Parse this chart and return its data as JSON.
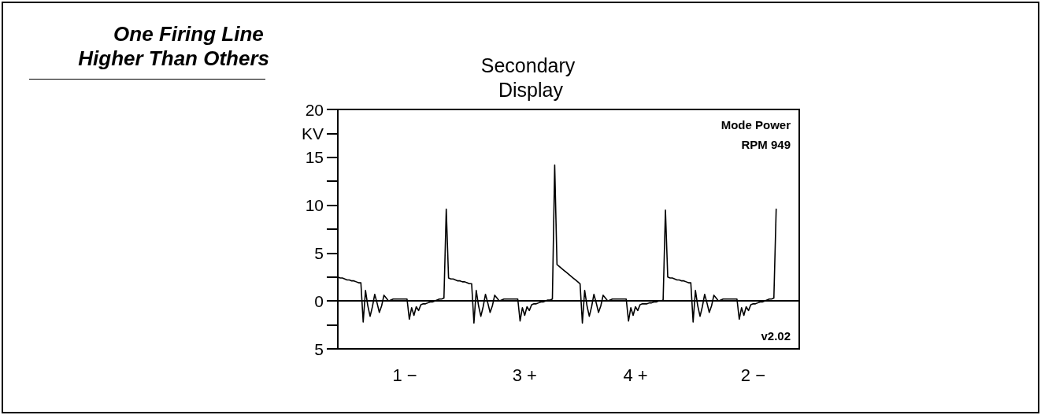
{
  "chart_data": {
    "type": "line",
    "title": "One Firing Line Higher Than Others",
    "subtitle": "Secondary Display",
    "annotations": [
      "Mode Power",
      "RPM 949",
      "v2.02"
    ],
    "categories": [
      null,
      null,
      null,
      null,
      null,
      null,
      null,
      null,
      null,
      null,
      null,
      null,
      null,
      null,
      null,
      null,
      null,
      null,
      null,
      null,
      null,
      null,
      null,
      null,
      null,
      null,
      null,
      null,
      null,
      "1 −",
      null,
      null,
      null,
      null,
      null,
      null,
      null,
      null,
      null,
      null,
      null,
      null,
      null,
      null,
      null,
      null,
      null,
      null,
      null,
      null,
      null,
      null,
      null,
      null,
      null,
      null,
      null,
      null,
      null,
      null,
      null,
      null,
      null,
      null,
      null,
      null,
      null,
      null,
      null,
      null,
      null,
      null,
      null,
      null,
      null,
      null,
      null,
      null,
      null,
      null,
      null,
      "3 +",
      null,
      null,
      null,
      null,
      null,
      null,
      null,
      null,
      null,
      null,
      null,
      null,
      null,
      null,
      null,
      null,
      null,
      null,
      null,
      null,
      null,
      null,
      null,
      null,
      null,
      null,
      null,
      null,
      null,
      null,
      null,
      null,
      null,
      null,
      null,
      null,
      null,
      null,
      null,
      null,
      null,
      null,
      null,
      null,
      null,
      null,
      null,
      "4 +",
      null,
      null,
      null,
      null,
      null,
      null,
      null,
      null,
      null,
      null,
      null,
      null,
      null,
      null,
      null,
      null,
      null,
      null,
      null,
      null,
      null,
      null,
      null,
      null,
      null,
      null,
      null,
      null,
      null,
      null,
      null,
      null,
      null,
      null,
      null,
      null,
      null,
      null,
      null,
      null,
      null,
      null,
      null,
      null,
      null,
      null,
      null,
      null,
      null,
      null,
      "2 −",
      null,
      null,
      null,
      null,
      null,
      null,
      null,
      null,
      null,
      null,
      null,
      null,
      null,
      null,
      null,
      null,
      null,
      null,
      null,
      null
    ],
    "ylim": [
      -5,
      20
    ],
    "yticks": [
      20,
      {
        "value": 17.5,
        "label": "KV"
      },
      15,
      {
        "value": 12.5,
        "label": null
      },
      10,
      {
        "value": 7.5,
        "label": null
      },
      5,
      {
        "value": 2.5,
        "label": null
      },
      0,
      {
        "value": -2.5,
        "label": null
      },
      {
        "value": -5,
        "label": "5"
      }
    ],
    "marker": "none",
    "line_style": "solid",
    "series": [
      {
        "color": "#000000",
        "values": [
          2.5,
          2.4,
          2.4,
          2.3,
          2.2,
          2.2,
          2.1,
          2.1,
          2.0,
          1.9,
          1.9,
          -2.2,
          1.1,
          -0.5,
          -1.6,
          -0.6,
          0.7,
          -0.2,
          -1.2,
          -0.5,
          0.6,
          0.3,
          0.0,
          0.1,
          0.2,
          0.2,
          0.2,
          0.2,
          0.2,
          0.2,
          0.2,
          -1.9,
          -0.7,
          -1.5,
          -0.6,
          -1.0,
          -0.4,
          -0.3,
          -0.3,
          -0.2,
          -0.1,
          -0.1,
          0,
          0.1,
          0.2,
          0.2,
          0.3,
          9.6,
          2.4,
          2.3,
          2.3,
          2.2,
          2.1,
          2.1,
          2.0,
          2.0,
          1.9,
          1.8,
          1.8,
          -2.3,
          1.1,
          -0.5,
          -1.6,
          -0.6,
          0.7,
          -0.2,
          -1.2,
          -0.5,
          0.6,
          0.3,
          0.0,
          0.1,
          0.2,
          0.2,
          0.2,
          0.2,
          0.2,
          0.2,
          0.2,
          -2.1,
          -0.7,
          -1.5,
          -0.6,
          -1.0,
          -0.4,
          -0.3,
          -0.3,
          -0.2,
          -0.1,
          -0.1,
          0,
          0.1,
          0.1,
          0.2,
          14.2,
          3.8,
          3.6,
          3.4,
          3.2,
          3.0,
          2.8,
          2.6,
          2.4,
          2.2,
          2.0,
          1.8,
          -2.3,
          1.1,
          -0.5,
          -1.6,
          -0.6,
          0.7,
          -0.2,
          -1.2,
          -0.5,
          0.6,
          0.3,
          0.0,
          0.1,
          0.2,
          0.2,
          0.2,
          0.2,
          0.2,
          0.2,
          0.2,
          -2.1,
          -0.7,
          -1.5,
          -0.6,
          -1.0,
          -0.4,
          -0.3,
          -0.3,
          -0.3,
          -0.2,
          -0.2,
          -0.1,
          -0.1,
          0,
          0,
          0.1,
          9.5,
          2.5,
          2.4,
          2.4,
          2.3,
          2.2,
          2.2,
          2.1,
          2.1,
          2.0,
          1.9,
          1.9,
          -2.2,
          1.1,
          -0.5,
          -1.6,
          -0.6,
          0.7,
          -0.2,
          -1.2,
          -0.5,
          0.6,
          0.3,
          0.0,
          0.1,
          0.2,
          0.2,
          0.2,
          0.2,
          0.2,
          0.2,
          0.2,
          -1.9,
          -0.7,
          -1.5,
          -0.6,
          -1.0,
          -0.4,
          -0.3,
          -0.3,
          -0.2,
          -0.1,
          -0.1,
          0,
          0.1,
          0.2,
          0.2,
          0.3,
          9.6,
          null,
          null,
          null,
          null,
          null,
          null,
          null,
          null,
          null,
          null
        ]
      }
    ]
  }
}
